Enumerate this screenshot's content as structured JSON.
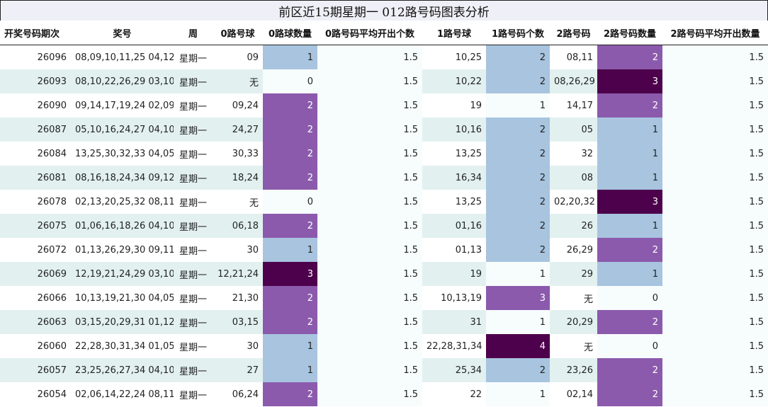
{
  "title": "前区近15期星期一 012路号码图表分析",
  "headers": [
    "开奖号码期次",
    "奖号",
    "周",
    "0路号球",
    "0路球数量",
    "0路号码平均开出个数",
    "1路号球",
    "1路号码个数",
    "2路号码",
    "2路号码数量",
    "2路号码平均开出数量"
  ],
  "rows": [
    {
      "issue": "26096",
      "nums": "08,09,10,11,25 04,12",
      "week": "星期一",
      "r0": "09",
      "r0n": "1",
      "r0avg": "1.5",
      "r1": "10,25",
      "r1n": "2",
      "r2": "08,11",
      "r2n": "2",
      "r2avg": "1.5"
    },
    {
      "issue": "26093",
      "nums": "08,10,22,26,29 03,10",
      "week": "星期一",
      "r0": "无",
      "r0n": "0",
      "r0avg": "1.5",
      "r1": "10,22",
      "r1n": "2",
      "r2": "08,26,29",
      "r2n": "3",
      "r2avg": "1.5"
    },
    {
      "issue": "26090",
      "nums": "09,14,17,19,24 02,09",
      "week": "星期一",
      "r0": "09,24",
      "r0n": "2",
      "r0avg": "1.5",
      "r1": "19",
      "r1n": "1",
      "r2": "14,17",
      "r2n": "2",
      "r2avg": "1.5"
    },
    {
      "issue": "26087",
      "nums": "05,10,16,24,27 04,10",
      "week": "星期一",
      "r0": "24,27",
      "r0n": "2",
      "r0avg": "1.5",
      "r1": "10,16",
      "r1n": "2",
      "r2": "05",
      "r2n": "1",
      "r2avg": "1.5"
    },
    {
      "issue": "26084",
      "nums": "13,25,30,32,33 04,05",
      "week": "星期一",
      "r0": "30,33",
      "r0n": "2",
      "r0avg": "1.5",
      "r1": "13,25",
      "r1n": "2",
      "r2": "32",
      "r2n": "1",
      "r2avg": "1.5"
    },
    {
      "issue": "26081",
      "nums": "08,16,18,24,34 09,12",
      "week": "星期一",
      "r0": "18,24",
      "r0n": "2",
      "r0avg": "1.5",
      "r1": "16,34",
      "r1n": "2",
      "r2": "08",
      "r2n": "1",
      "r2avg": "1.5"
    },
    {
      "issue": "26078",
      "nums": "02,13,20,25,32 08,11",
      "week": "星期一",
      "r0": "无",
      "r0n": "0",
      "r0avg": "1.5",
      "r1": "13,25",
      "r1n": "2",
      "r2": "02,20,32",
      "r2n": "3",
      "r2avg": "1.5"
    },
    {
      "issue": "26075",
      "nums": "01,06,16,18,26 04,10",
      "week": "星期一",
      "r0": "06,18",
      "r0n": "2",
      "r0avg": "1.5",
      "r1": "01,16",
      "r1n": "2",
      "r2": "26",
      "r2n": "1",
      "r2avg": "1.5"
    },
    {
      "issue": "26072",
      "nums": "01,13,26,29,30 09,11",
      "week": "星期一",
      "r0": "30",
      "r0n": "1",
      "r0avg": "1.5",
      "r1": "01,13",
      "r1n": "2",
      "r2": "26,29",
      "r2n": "2",
      "r2avg": "1.5"
    },
    {
      "issue": "26069",
      "nums": "12,19,21,24,29 03,10",
      "week": "星期一",
      "r0": "12,21,24",
      "r0n": "3",
      "r0avg": "1.5",
      "r1": "19",
      "r1n": "1",
      "r2": "29",
      "r2n": "1",
      "r2avg": "1.5"
    },
    {
      "issue": "26066",
      "nums": "10,13,19,21,30 04,05",
      "week": "星期一",
      "r0": "21,30",
      "r0n": "2",
      "r0avg": "1.5",
      "r1": "10,13,19",
      "r1n": "3",
      "r2": "无",
      "r2n": "0",
      "r2avg": "1.5"
    },
    {
      "issue": "26063",
      "nums": "03,15,20,29,31 01,12",
      "week": "星期一",
      "r0": "03,15",
      "r0n": "2",
      "r0avg": "1.5",
      "r1": "31",
      "r1n": "1",
      "r2": "20,29",
      "r2n": "2",
      "r2avg": "1.5"
    },
    {
      "issue": "26060",
      "nums": "22,28,30,31,34 01,05",
      "week": "星期一",
      "r0": "30",
      "r0n": "1",
      "r0avg": "1.5",
      "r1": "22,28,31,34",
      "r1n": "4",
      "r2": "无",
      "r2n": "0",
      "r2avg": "1.5"
    },
    {
      "issue": "26057",
      "nums": "23,25,26,27,34 04,10",
      "week": "星期一",
      "r0": "27",
      "r0n": "1",
      "r0avg": "1.5",
      "r1": "25,34",
      "r1n": "2",
      "r2": "23,26",
      "r2n": "2",
      "r2avg": "1.5"
    },
    {
      "issue": "26054",
      "nums": "02,06,14,22,24 08,11",
      "week": "星期一",
      "r0": "06,24",
      "r0n": "2",
      "r0avg": "1.5",
      "r1": "22",
      "r1n": "1",
      "r2": "02,14",
      "r2n": "2",
      "r2avg": "1.5"
    }
  ]
}
